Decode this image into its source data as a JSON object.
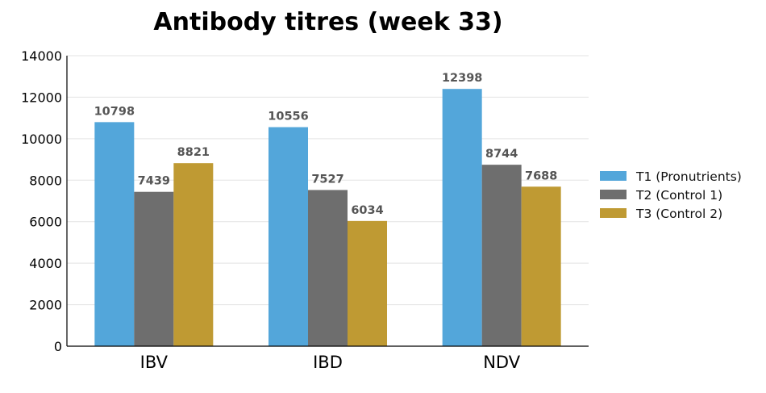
{
  "chart_data": {
    "type": "bar",
    "title": "Antibody titres (week 33)",
    "xlabel": "",
    "ylabel": "",
    "categories": [
      "IBV",
      "IBD",
      "NDV"
    ],
    "series": [
      {
        "name": "T1 (Pronutrients)",
        "color": "#53a6da",
        "values": [
          10798,
          10556,
          12398
        ]
      },
      {
        "name": "T2 (Control 1)",
        "color": "#6e6e6e",
        "values": [
          7439,
          7527,
          8744
        ]
      },
      {
        "name": "T3 (Control 2)",
        "color": "#bf9a33",
        "values": [
          8821,
          6034,
          7688
        ]
      }
    ],
    "ylim": [
      0,
      14000
    ],
    "yticks": [
      0,
      2000,
      4000,
      6000,
      8000,
      10000,
      12000,
      14000
    ],
    "grid": true,
    "legend_position": "right",
    "data_labels": true
  }
}
